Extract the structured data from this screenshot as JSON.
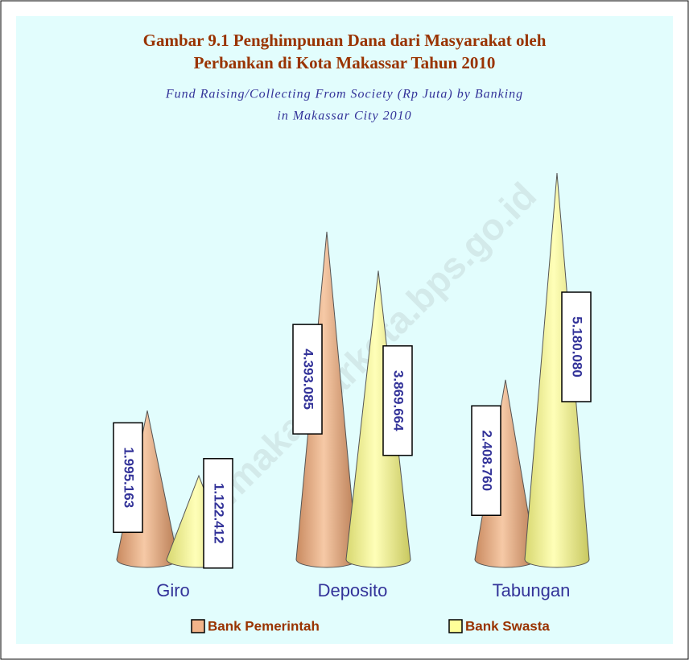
{
  "chart_data": {
    "type": "cone",
    "title": [
      "Gambar 9.1 Penghimpunan Dana dari Masyarakat oleh",
      "Perbankan di Kota Makassar Tahun 2010"
    ],
    "subtitle": [
      "Fund Raising/Collecting From Society (Rp Juta) by Banking",
      "in Makassar City 2010"
    ],
    "watermark": "http://makassarkota.bps.go.id",
    "categories": [
      "Giro",
      "Deposito",
      "Tabungan"
    ],
    "series": [
      {
        "name": "Bank Pemerintah",
        "color": "#f2b48a",
        "values": [
          1995163,
          4393085,
          2408760
        ],
        "value_labels": [
          "1.995.163",
          "4.393.085",
          "2.408.760"
        ]
      },
      {
        "name": "Bank Swasta",
        "color": "#ffff99",
        "values": [
          1122412,
          3869664,
          5180080
        ],
        "value_labels": [
          "1.122.412",
          "3.869.664",
          "5.180.080"
        ]
      }
    ],
    "legend": "bottom"
  }
}
